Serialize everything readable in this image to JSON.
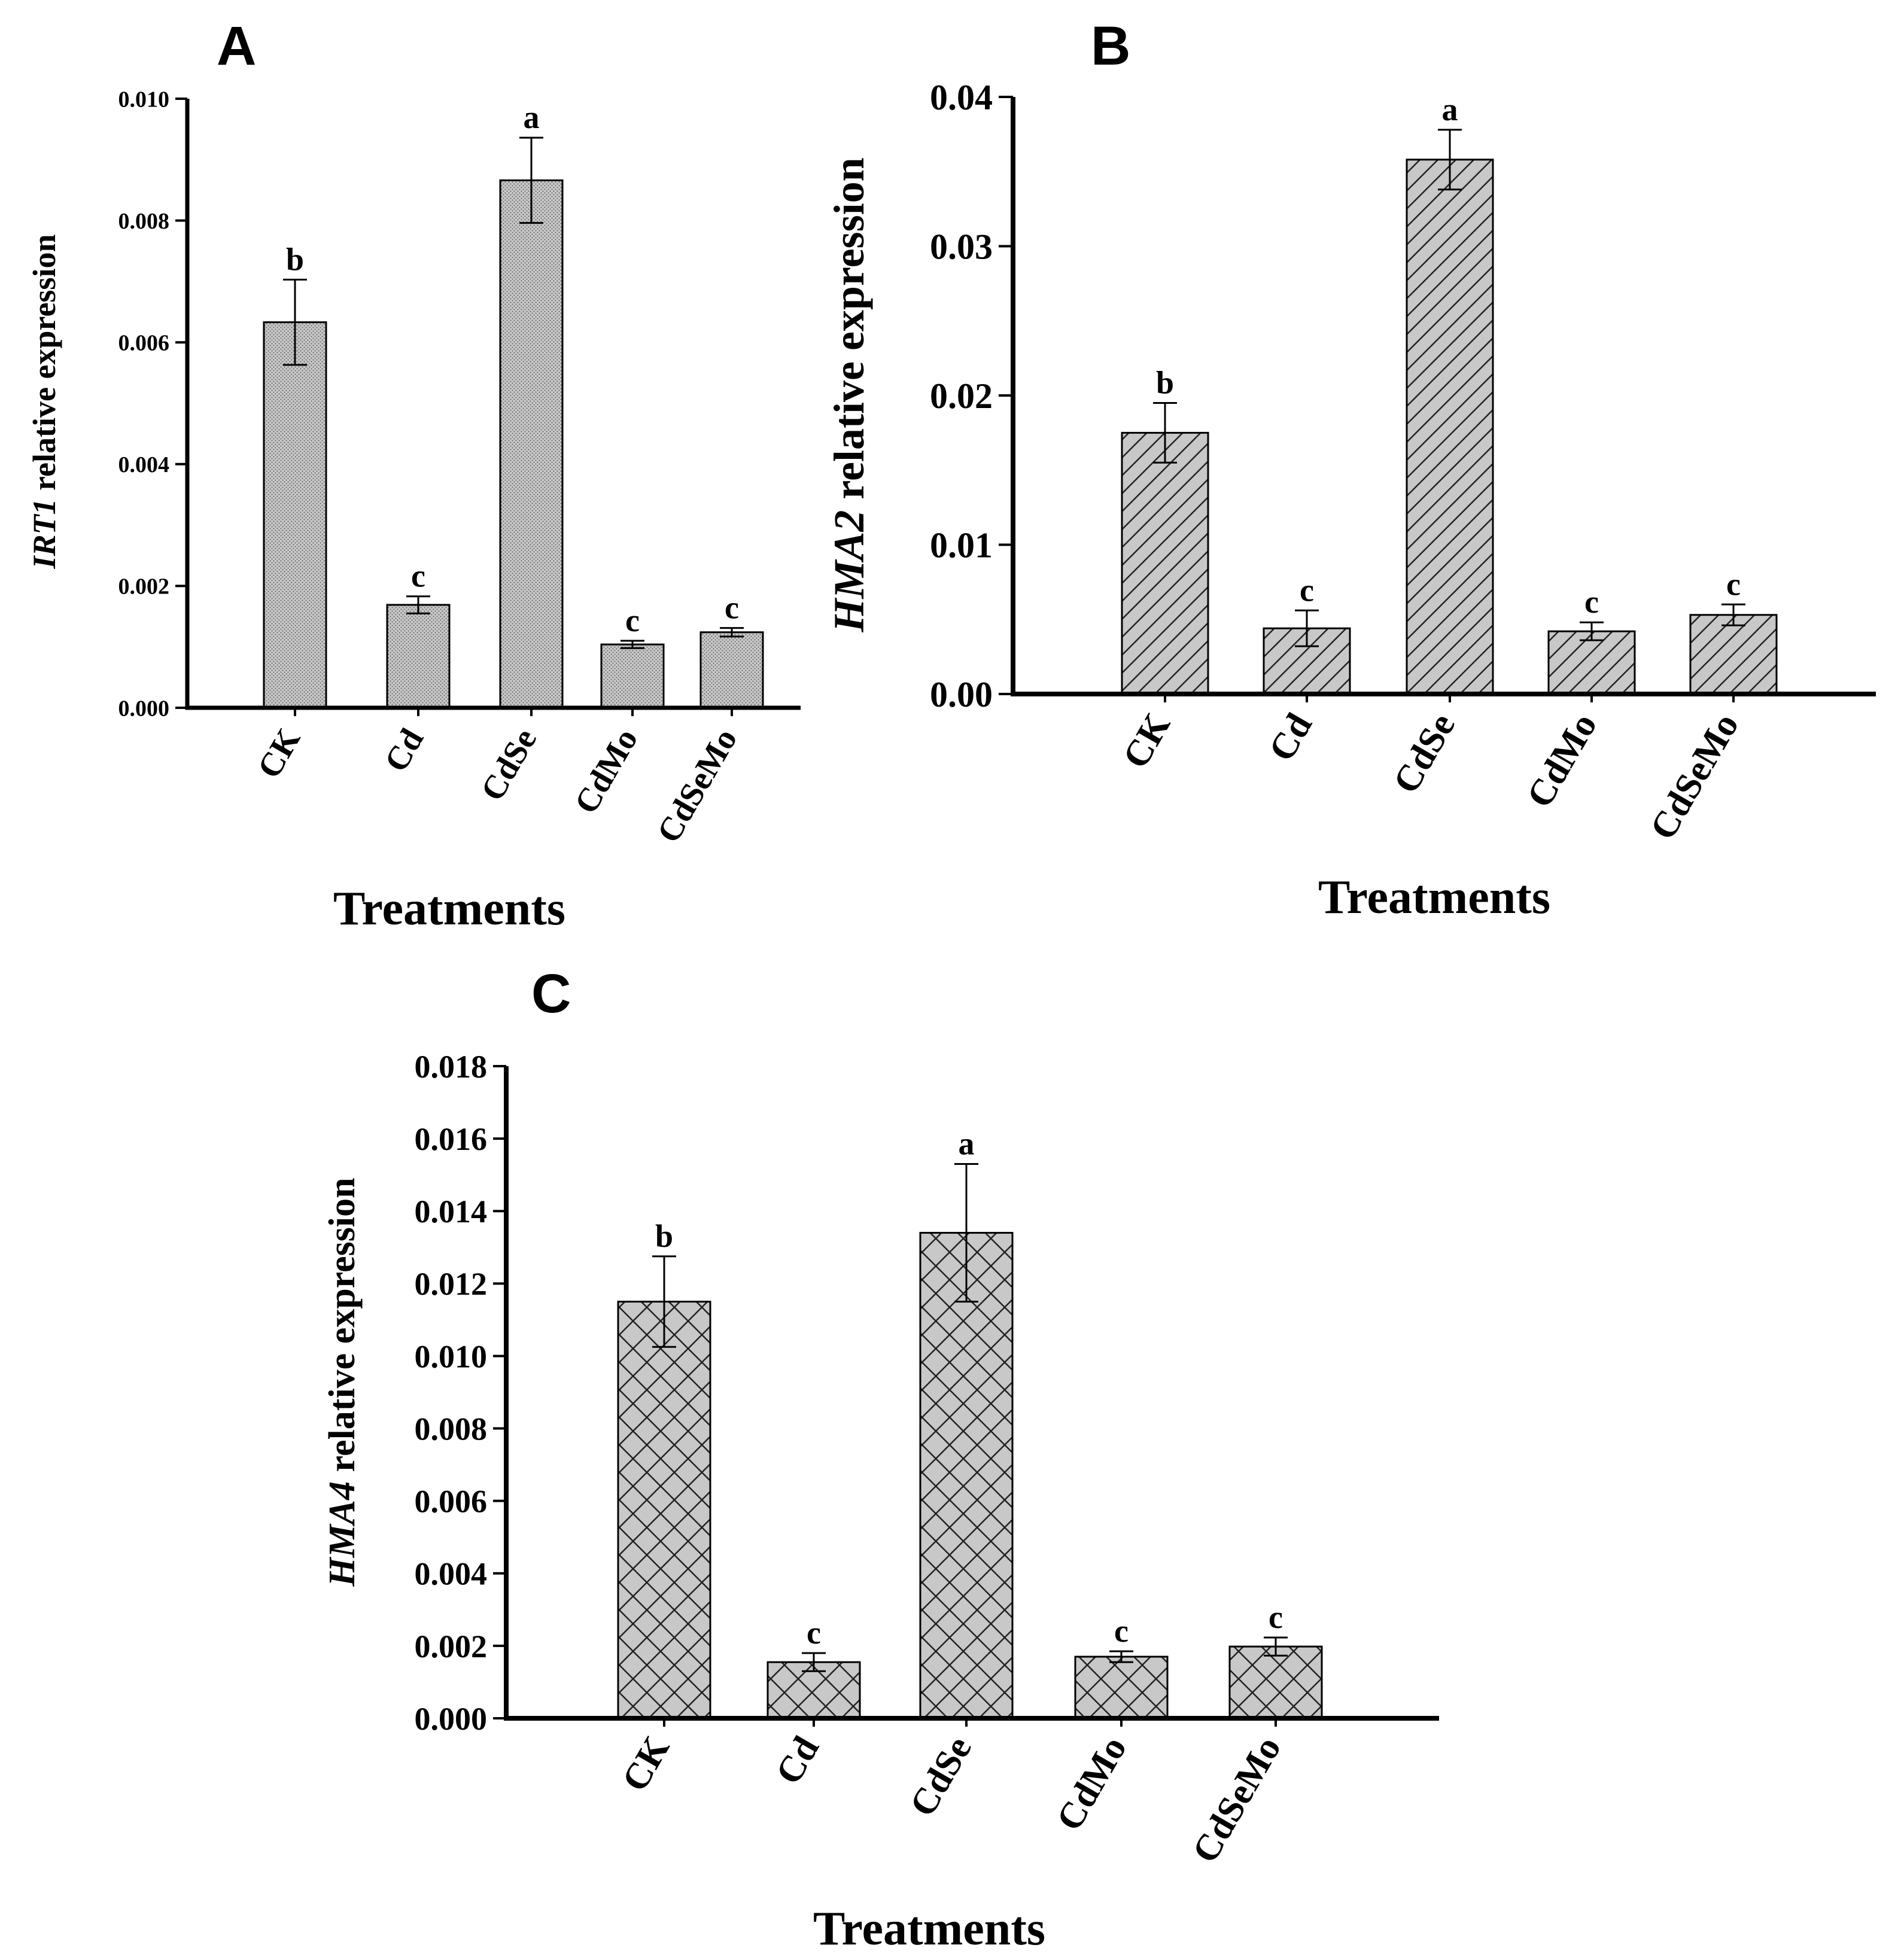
{
  "figure": {
    "x_title": "Treatments",
    "bar_color": "#c8c8c8",
    "edge_color": "#000000"
  },
  "chart_data": [
    {
      "panel": "A",
      "type": "bar",
      "title": "",
      "xlabel": "Treatments",
      "ylabel_gene": "IRT1",
      "ylabel_rest": " relative expression",
      "categories": [
        "CK",
        "Cd",
        "CdSe",
        "CdMo",
        "CdSeMo"
      ],
      "values": [
        0.00633,
        0.00169,
        0.00866,
        0.00104,
        0.00124
      ],
      "errors": [
        0.0007,
        0.00014,
        0.0007,
        6e-05,
        7e-05
      ],
      "letters": [
        "b",
        "c",
        "a",
        "c",
        "c"
      ],
      "ylim": [
        0,
        0.01
      ],
      "yticks": [
        "0.000",
        "0.002",
        "0.004",
        "0.006",
        "0.008",
        "0.010"
      ],
      "pattern": "dots"
    },
    {
      "panel": "B",
      "type": "bar",
      "title": "",
      "xlabel": "Treatments",
      "ylabel_gene": "HMA2",
      "ylabel_rest": " relative expression",
      "categories": [
        "CK",
        "Cd",
        "CdSe",
        "CdMo",
        "CdSeMo"
      ],
      "values": [
        0.0175,
        0.0044,
        0.0358,
        0.0042,
        0.0053
      ],
      "errors": [
        0.002,
        0.0012,
        0.002,
        0.0006,
        0.0007
      ],
      "letters": [
        "b",
        "c",
        "a",
        "c",
        "c"
      ],
      "ylim": [
        0,
        0.04
      ],
      "yticks": [
        "0.00",
        "0.01",
        "0.02",
        "0.03",
        "0.04"
      ],
      "pattern": "diagonal"
    },
    {
      "panel": "C",
      "type": "bar",
      "title": "",
      "xlabel": "Treatments",
      "ylabel_gene": "HMA4",
      "ylabel_rest": " relative expression",
      "categories": [
        "CK",
        "Cd",
        "CdSe",
        "CdMo",
        "CdSeMo"
      ],
      "values": [
        0.0115,
        0.00155,
        0.0134,
        0.0017,
        0.00198
      ],
      "errors": [
        0.00125,
        0.00025,
        0.0019,
        0.00015,
        0.00025
      ],
      "letters": [
        "b",
        "c",
        "a",
        "c",
        "c"
      ],
      "ylim": [
        0,
        0.018
      ],
      "yticks": [
        "0.000",
        "0.002",
        "0.004",
        "0.006",
        "0.008",
        "0.010",
        "0.012",
        "0.014",
        "0.016",
        "0.018"
      ],
      "pattern": "crosshatch"
    }
  ]
}
